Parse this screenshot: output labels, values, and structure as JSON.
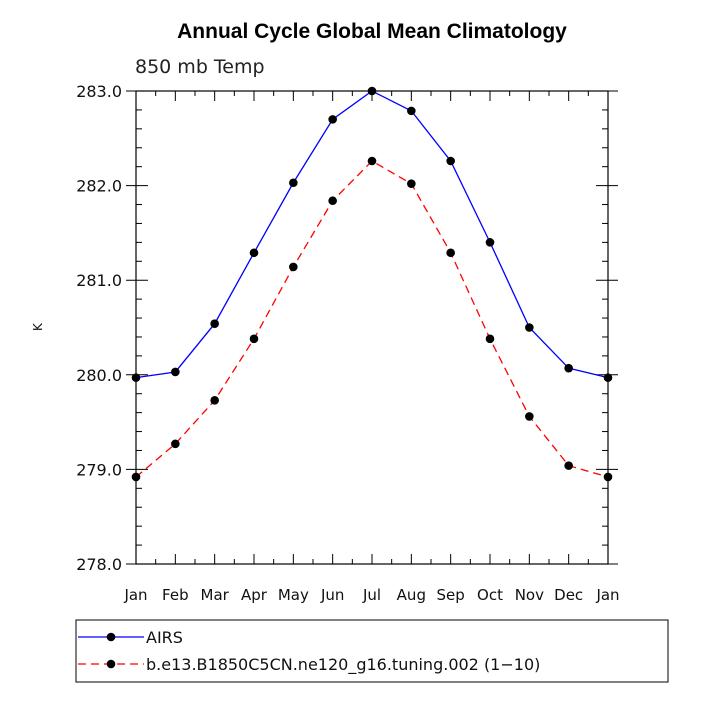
{
  "chart_data": {
    "type": "line",
    "title": "Annual Cycle Global Mean Climatology",
    "subtitle": "850 mb Temp",
    "ylabel": "K",
    "xlabel": "",
    "categories": [
      "Jan",
      "Feb",
      "Mar",
      "Apr",
      "May",
      "Jun",
      "Jul",
      "Aug",
      "Sep",
      "Oct",
      "Nov",
      "Dec",
      "Jan"
    ],
    "ylim": [
      278.0,
      283.0
    ],
    "yticks": [
      "278.0",
      "279.0",
      "280.0",
      "281.0",
      "282.0",
      "283.0"
    ],
    "series": [
      {
        "name": "AIRS",
        "color": "#0000ff",
        "style": "solid",
        "values": [
          279.97,
          280.03,
          280.54,
          281.29,
          282.03,
          282.7,
          283.0,
          282.79,
          282.26,
          281.4,
          280.5,
          280.07,
          279.97
        ]
      },
      {
        "name": "b.e13.B1850C5CN.ne120_g16.tuning.002 (1−10)",
        "color": "#ff0000",
        "style": "dashed",
        "values": [
          278.92,
          279.27,
          279.73,
          280.38,
          281.14,
          281.84,
          282.26,
          282.02,
          281.29,
          280.38,
          279.56,
          279.04,
          278.92
        ]
      }
    ],
    "marker_color": "#000000",
    "grid": false,
    "legend_position": "bottom"
  }
}
